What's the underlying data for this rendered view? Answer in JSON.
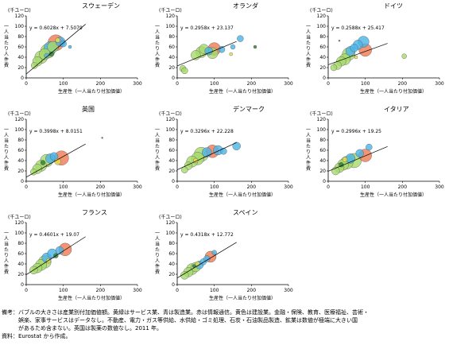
{
  "common": {
    "unit": "(千ユーロ)",
    "y_label": "一人当たり人件費",
    "x_label": "生産性（一人当たり付加価値）",
    "x_ticks": [
      0,
      100,
      200,
      300
    ],
    "y_ticks": [
      0,
      20,
      40,
      60,
      80,
      100,
      120
    ],
    "xlim": [
      0,
      300
    ],
    "ylim": [
      0,
      120
    ]
  },
  "colors": {
    "green": "#a6d96a",
    "blue": "#4ab4e8",
    "orange": "#f07b51",
    "yellow": "#e8e04a",
    "dark": "#2e7d32"
  },
  "chart_data": [
    {
      "type": "scatter",
      "title": "スウェーデン",
      "equation": "y = 0.6028x + 7.5079",
      "trendline": {
        "slope": 0.6028,
        "intercept": 7.5079
      },
      "points": [
        {
          "x": 22,
          "y": 24,
          "s": 4,
          "c": "green"
        },
        {
          "x": 30,
          "y": 32,
          "s": 6,
          "c": "green"
        },
        {
          "x": 40,
          "y": 40,
          "s": 8,
          "c": "green"
        },
        {
          "x": 50,
          "y": 46,
          "s": 7,
          "c": "green"
        },
        {
          "x": 58,
          "y": 52,
          "s": 9,
          "c": "green"
        },
        {
          "x": 65,
          "y": 58,
          "s": 8,
          "c": "blue"
        },
        {
          "x": 72,
          "y": 60,
          "s": 7,
          "c": "green"
        },
        {
          "x": 80,
          "y": 68,
          "s": 10,
          "c": "orange"
        },
        {
          "x": 92,
          "y": 70,
          "s": 6,
          "c": "blue"
        },
        {
          "x": 68,
          "y": 46,
          "s": 3,
          "c": "dark"
        },
        {
          "x": 85,
          "y": 73,
          "s": 3,
          "c": "yellow"
        },
        {
          "x": 100,
          "y": 66,
          "s": 4,
          "c": "blue"
        },
        {
          "x": 55,
          "y": 43,
          "s": 3,
          "c": "blue"
        },
        {
          "x": 118,
          "y": 60,
          "s": 2,
          "c": "blue"
        }
      ]
    },
    {
      "type": "scatter",
      "title": "オランダ",
      "equation": "y = 0.2958x + 23.137",
      "trendline": {
        "slope": 0.2958,
        "intercept": 23.137
      },
      "points": [
        {
          "x": 15,
          "y": 18,
          "s": 4,
          "c": "green"
        },
        {
          "x": 20,
          "y": 14,
          "s": 4,
          "c": "green"
        },
        {
          "x": 50,
          "y": 44,
          "s": 6,
          "c": "green"
        },
        {
          "x": 65,
          "y": 50,
          "s": 7,
          "c": "green"
        },
        {
          "x": 72,
          "y": 56,
          "s": 6,
          "c": "green"
        },
        {
          "x": 85,
          "y": 52,
          "s": 5,
          "c": "blue"
        },
        {
          "x": 95,
          "y": 48,
          "s": 7,
          "c": "green"
        },
        {
          "x": 100,
          "y": 56,
          "s": 8,
          "c": "orange"
        },
        {
          "x": 120,
          "y": 55,
          "s": 4,
          "c": "blue"
        },
        {
          "x": 150,
          "y": 60,
          "s": 3,
          "c": "blue"
        },
        {
          "x": 170,
          "y": 76,
          "s": 4,
          "c": "blue"
        },
        {
          "x": 210,
          "y": 60,
          "s": 2,
          "c": "dark"
        },
        {
          "x": 145,
          "y": 46,
          "s": 2,
          "c": "yellow"
        }
      ]
    },
    {
      "type": "scatter",
      "title": "ドイツ",
      "equation": "y = 0.2588x + 25.417",
      "trendline": {
        "slope": 0.2588,
        "intercept": 25.417
      },
      "points": [
        {
          "x": 15,
          "y": 20,
          "s": 4,
          "c": "green"
        },
        {
          "x": 25,
          "y": 24,
          "s": 5,
          "c": "green"
        },
        {
          "x": 35,
          "y": 32,
          "s": 6,
          "c": "green"
        },
        {
          "x": 45,
          "y": 36,
          "s": 7,
          "c": "green"
        },
        {
          "x": 55,
          "y": 46,
          "s": 8,
          "c": "green"
        },
        {
          "x": 60,
          "y": 52,
          "s": 6,
          "c": "blue"
        },
        {
          "x": 70,
          "y": 58,
          "s": 5,
          "c": "blue"
        },
        {
          "x": 80,
          "y": 64,
          "s": 6,
          "c": "blue"
        },
        {
          "x": 95,
          "y": 70,
          "s": 7,
          "c": "blue"
        },
        {
          "x": 100,
          "y": 54,
          "s": 8,
          "c": "orange"
        },
        {
          "x": 30,
          "y": 72,
          "s": 1,
          "c": "dark"
        },
        {
          "x": 205,
          "y": 42,
          "s": 3,
          "c": "green"
        },
        {
          "x": 75,
          "y": 40,
          "s": 2,
          "c": "yellow"
        }
      ]
    },
    {
      "type": "scatter",
      "title": "英国",
      "equation": "y = 0.3998x + 8.0151",
      "trendline": {
        "slope": 0.3998,
        "intercept": 8.0151
      },
      "points": [
        {
          "x": 20,
          "y": 18,
          "s": 4,
          "c": "green"
        },
        {
          "x": 30,
          "y": 24,
          "s": 6,
          "c": "green"
        },
        {
          "x": 40,
          "y": 30,
          "s": 7,
          "c": "green"
        },
        {
          "x": 55,
          "y": 40,
          "s": 8,
          "c": "green"
        },
        {
          "x": 65,
          "y": 44,
          "s": 6,
          "c": "blue"
        },
        {
          "x": 75,
          "y": 48,
          "s": 5,
          "c": "blue"
        },
        {
          "x": 95,
          "y": 45,
          "s": 9,
          "c": "orange"
        },
        {
          "x": 85,
          "y": 38,
          "s": 4,
          "c": "yellow"
        },
        {
          "x": 45,
          "y": 36,
          "s": 3,
          "c": "dark"
        },
        {
          "x": 205,
          "y": 84,
          "s": 1,
          "c": "dark"
        }
      ]
    },
    {
      "type": "scatter",
      "title": "デンマーク",
      "equation": "y = 0.3296x + 22.228",
      "trendline": {
        "slope": 0.3296,
        "intercept": 22.228
      },
      "points": [
        {
          "x": 20,
          "y": 22,
          "s": 4,
          "c": "green"
        },
        {
          "x": 30,
          "y": 30,
          "s": 5,
          "c": "green"
        },
        {
          "x": 40,
          "y": 38,
          "s": 7,
          "c": "green"
        },
        {
          "x": 55,
          "y": 44,
          "s": 8,
          "c": "green"
        },
        {
          "x": 65,
          "y": 52,
          "s": 9,
          "c": "green"
        },
        {
          "x": 80,
          "y": 56,
          "s": 6,
          "c": "blue"
        },
        {
          "x": 95,
          "y": 58,
          "s": 8,
          "c": "orange"
        },
        {
          "x": 110,
          "y": 60,
          "s": 6,
          "c": "blue"
        },
        {
          "x": 125,
          "y": 58,
          "s": 4,
          "c": "blue"
        },
        {
          "x": 160,
          "y": 68,
          "s": 5,
          "c": "blue"
        },
        {
          "x": 50,
          "y": 40,
          "s": 3,
          "c": "yellow"
        }
      ]
    },
    {
      "type": "scatter",
      "title": "イタリア",
      "equation": "y = 0.2996x + 19.25",
      "trendline": {
        "slope": 0.2996,
        "intercept": 19.25
      },
      "points": [
        {
          "x": 20,
          "y": 20,
          "s": 5,
          "c": "green"
        },
        {
          "x": 30,
          "y": 26,
          "s": 6,
          "c": "green"
        },
        {
          "x": 40,
          "y": 32,
          "s": 7,
          "c": "green"
        },
        {
          "x": 50,
          "y": 36,
          "s": 8,
          "c": "green"
        },
        {
          "x": 60,
          "y": 44,
          "s": 6,
          "c": "blue"
        },
        {
          "x": 70,
          "y": 40,
          "s": 9,
          "c": "green"
        },
        {
          "x": 85,
          "y": 54,
          "s": 5,
          "c": "blue"
        },
        {
          "x": 100,
          "y": 50,
          "s": 8,
          "c": "orange"
        },
        {
          "x": 110,
          "y": 66,
          "s": 4,
          "c": "blue"
        },
        {
          "x": 45,
          "y": 42,
          "s": 3,
          "c": "yellow"
        },
        {
          "x": 35,
          "y": 32,
          "s": 3,
          "c": "dark"
        }
      ]
    },
    {
      "type": "scatter",
      "title": "フランス",
      "equation": "y = 0.4601x + 19.07",
      "trendline": {
        "slope": 0.4601,
        "intercept": 19.07
      },
      "points": [
        {
          "x": 20,
          "y": 28,
          "s": 5,
          "c": "green"
        },
        {
          "x": 30,
          "y": 32,
          "s": 6,
          "c": "green"
        },
        {
          "x": 40,
          "y": 38,
          "s": 7,
          "c": "green"
        },
        {
          "x": 50,
          "y": 44,
          "s": 8,
          "c": "green"
        },
        {
          "x": 55,
          "y": 52,
          "s": 6,
          "c": "blue"
        },
        {
          "x": 70,
          "y": 60,
          "s": 6,
          "c": "blue"
        },
        {
          "x": 90,
          "y": 66,
          "s": 5,
          "c": "blue"
        },
        {
          "x": 105,
          "y": 68,
          "s": 8,
          "c": "orange"
        },
        {
          "x": 60,
          "y": 46,
          "s": 3,
          "c": "yellow"
        },
        {
          "x": 80,
          "y": 56,
          "s": 3,
          "c": "dark"
        }
      ]
    },
    {
      "type": "scatter",
      "title": "スペイン",
      "equation": "y = 0.4318x + 12.772",
      "trendline": {
        "slope": 0.4318,
        "intercept": 12.772
      },
      "points": [
        {
          "x": 20,
          "y": 18,
          "s": 5,
          "c": "green"
        },
        {
          "x": 30,
          "y": 24,
          "s": 6,
          "c": "green"
        },
        {
          "x": 40,
          "y": 30,
          "s": 7,
          "c": "green"
        },
        {
          "x": 50,
          "y": 34,
          "s": 6,
          "c": "green"
        },
        {
          "x": 60,
          "y": 38,
          "s": 5,
          "c": "blue"
        },
        {
          "x": 70,
          "y": 44,
          "s": 4,
          "c": "blue"
        },
        {
          "x": 80,
          "y": 50,
          "s": 4,
          "c": "blue"
        },
        {
          "x": 90,
          "y": 54,
          "s": 7,
          "c": "orange"
        },
        {
          "x": 100,
          "y": 62,
          "s": 3,
          "c": "blue"
        },
        {
          "x": 55,
          "y": 40,
          "s": 3,
          "c": "yellow"
        },
        {
          "x": 45,
          "y": 36,
          "s": 2,
          "c": "dark"
        }
      ]
    }
  ],
  "notes": {
    "line1": "備考：バブルの大きさは産業別付加価値額。黄緑はサービス業、青は製造業。赤は情報通信。黄色は建設業。金融・保険、教育、医療福祉、芸術・",
    "line2": "　　　娯楽、家事サービスはデータなし。不動産、電力・ガス等供給、水供給・ゴミ処理、石炭・石油製品製造、鉱業は数値が極端に大きい国",
    "line3": "　　　があるため含まない。英国は製薬の数値なし。2011 年。",
    "line4": "資料：Eurostat から作成。"
  }
}
